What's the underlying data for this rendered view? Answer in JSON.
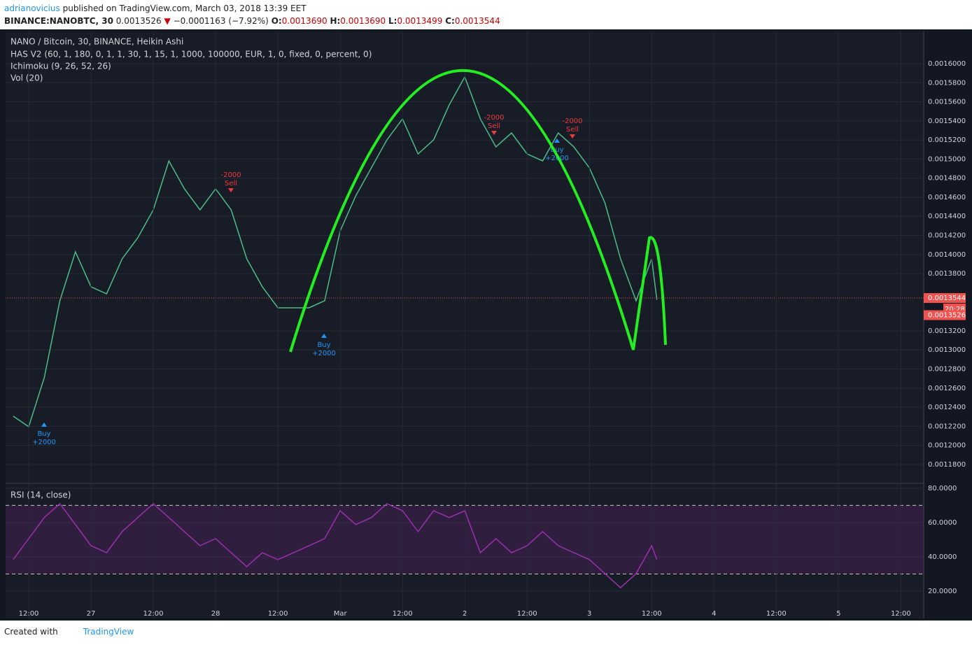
{
  "header": {
    "author": "adrianovicius",
    "published": "published on TradingView.com, March 03, 2018 13:39 EET",
    "symbol": "BINANCE:NANOBTC, 30",
    "last": "0.0013526",
    "arrow": "▼",
    "change": "−0.0001163 (−7.92%)",
    "open_label": "O:",
    "open": "0.0013690",
    "high_label": "H:",
    "high": "0.0013690",
    "low_label": "L:",
    "low": "0.0013499",
    "close_label": "C:",
    "close": "0.0013544"
  },
  "footer": {
    "created": "Created with",
    "brand": "TradingView"
  },
  "chart_data": [
    {
      "type": "line",
      "title": "NANO / Bitcoin, 30, BINANCE, Heikin Ashi",
      "indicators": [
        "HAS V2 (60, 1, 180, 0, 1, 1, 30, 1, 15, 1, 1000, 100000, EUR, 1, 0, fixed, 0, percent, 0)",
        "Ichimoku (9, 26, 52, 26)",
        "Vol (20)"
      ],
      "color": "#4dbd87",
      "x": [
        -3,
        0,
        3,
        6,
        9,
        12,
        15,
        18,
        21,
        24,
        27,
        30,
        33,
        36,
        39,
        42,
        45,
        48,
        51,
        54,
        57,
        60,
        63,
        66,
        69,
        72,
        75,
        78,
        81,
        84,
        87,
        90,
        93,
        96,
        99,
        102,
        105,
        108,
        111,
        114,
        117,
        120,
        121
      ],
      "values": [
        0.0012306,
        0.0012196,
        0.001271,
        0.0013515,
        0.0014028,
        0.0013662,
        0.0013588,
        0.0013955,
        0.0014175,
        0.0014468,
        0.0014981,
        0.0014688,
        0.0014468,
        0.0014688,
        0.0014468,
        0.0013955,
        0.0013662,
        0.0013442,
        0.0013442,
        0.0013442,
        0.0013515,
        0.0014248,
        0.0014615,
        0.0014908,
        0.0015201,
        0.0015421,
        0.0015054,
        0.0015201,
        0.0015568,
        0.0015861,
        0.0015421,
        0.0015128,
        0.0015274,
        0.0015054,
        0.0014981,
        0.0015274,
        0.0015128,
        0.0014908,
        0.0014541,
        0.0013955,
        0.0013515,
        0.0013955,
        0.0013526
      ],
      "xlim": [
        -4.45,
        172.4
      ],
      "ylim": [
        0.0011609,
        0.0016337
      ],
      "yticks": [
        {
          "value": 0.00118,
          "label": "0.0011800"
        },
        {
          "value": 0.0012,
          "label": "0.0012000"
        },
        {
          "value": 0.00122,
          "label": "0.0012200"
        },
        {
          "value": 0.00124,
          "label": "0.0012400"
        },
        {
          "value": 0.00126,
          "label": "0.0012600"
        },
        {
          "value": 0.00128,
          "label": "0.0012800"
        },
        {
          "value": 0.0013,
          "label": "0.0013000"
        },
        {
          "value": 0.00132,
          "label": "0.0013200"
        },
        {
          "value": 0.00138,
          "label": "0.0013800"
        },
        {
          "value": 0.0014,
          "label": "0.0014000"
        },
        {
          "value": 0.00142,
          "label": "0.0014200"
        },
        {
          "value": 0.00144,
          "label": "0.0014400"
        },
        {
          "value": 0.00146,
          "label": "0.0014600"
        },
        {
          "value": 0.00148,
          "label": "0.0014800"
        },
        {
          "value": 0.0015,
          "label": "0.0015000"
        },
        {
          "value": 0.00152,
          "label": "0.0015200"
        },
        {
          "value": 0.00154,
          "label": "0.0015400"
        },
        {
          "value": 0.00156,
          "label": "0.0015600"
        },
        {
          "value": 0.00158,
          "label": "0.0015800"
        },
        {
          "value": 0.0016,
          "label": "0.0016000"
        }
      ],
      "last_price": {
        "value": 0.0013544,
        "label": "0.0013544"
      },
      "countdown": "20:28",
      "last_close": {
        "value": 0.0013526,
        "label": "0.0013526"
      },
      "annotations": [
        [
          "-2000",
          "Sell"
        ],
        [
          "-2000",
          "Sell"
        ],
        [
          "-2000",
          "Sell"
        ],
        [
          "Buy",
          "+2000"
        ],
        [
          "Buy",
          "+2000"
        ],
        [
          "Buy",
          "+2000"
        ]
      ],
      "grid": true
    },
    {
      "type": "line",
      "title": "RSI (14, close)",
      "color": "#9b2fae",
      "x": [
        -3,
        0,
        3,
        6,
        9,
        12,
        15,
        18,
        21,
        24,
        27,
        30,
        33,
        36,
        39,
        42,
        45,
        48,
        51,
        54,
        57,
        60,
        63,
        66,
        69,
        72,
        75,
        78,
        81,
        84,
        87,
        90,
        93,
        96,
        99,
        102,
        105,
        108,
        111,
        114,
        117,
        120,
        121
      ],
      "values": [
        38.4,
        50.6,
        62.9,
        71,
        58.8,
        46.5,
        42.4,
        54.7,
        62.9,
        71,
        62.9,
        54.7,
        46.5,
        50.6,
        42.4,
        34.3,
        42.4,
        38.4,
        42.4,
        46.5,
        50.6,
        66.9,
        58.8,
        62.9,
        71,
        66.9,
        54.7,
        66.9,
        62.9,
        66.9,
        42.4,
        50.6,
        42.4,
        46.5,
        54.7,
        46.5,
        42.4,
        38.4,
        30.2,
        22,
        30.2,
        46.5,
        38.4
      ],
      "xlim": [
        -4.45,
        172.4
      ],
      "ylim": [
        4.1,
        82.4
      ],
      "yticks": [
        {
          "value": 20,
          "label": "20.0000"
        },
        {
          "value": 40,
          "label": "40.0000"
        },
        {
          "value": 60,
          "label": "60.0000"
        },
        {
          "value": 80,
          "label": "80.0000"
        }
      ],
      "bands": [
        30,
        70
      ],
      "xticks": [
        {
          "value": 0,
          "label": "12:00"
        },
        {
          "value": 12,
          "label": "27"
        },
        {
          "value": 24,
          "label": "12:00"
        },
        {
          "value": 36,
          "label": "28"
        },
        {
          "value": 48,
          "label": "12:00"
        },
        {
          "value": 60,
          "label": "Mar"
        },
        {
          "value": 72,
          "label": "12:00"
        },
        {
          "value": 84,
          "label": "2"
        },
        {
          "value": 96,
          "label": "12:00"
        },
        {
          "value": 108,
          "label": "3"
        },
        {
          "value": 120,
          "label": "12:00"
        },
        {
          "value": 132,
          "label": "4"
        },
        {
          "value": 144,
          "label": "12:00"
        },
        {
          "value": 156,
          "label": "5"
        },
        {
          "value": 168,
          "label": "12:00"
        }
      ],
      "grid": true
    }
  ]
}
